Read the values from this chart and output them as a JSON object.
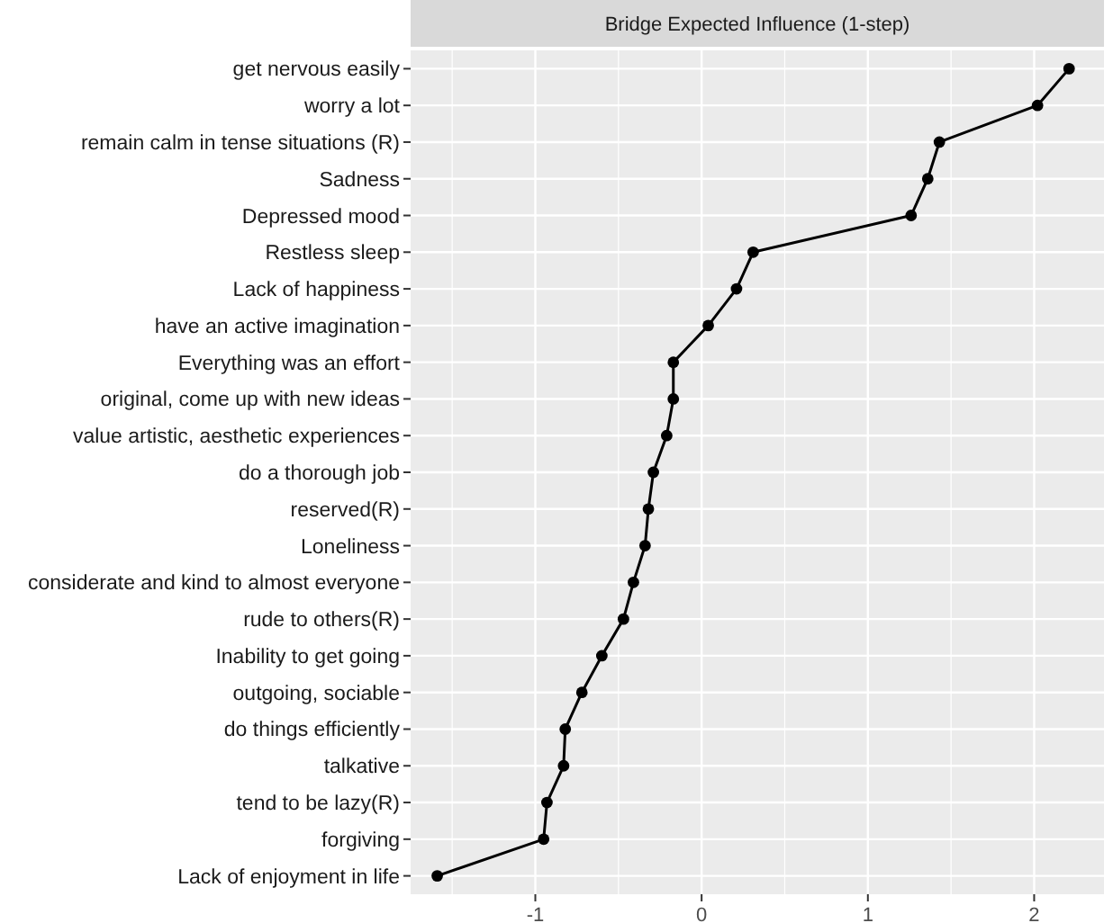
{
  "chart_data": {
    "type": "line",
    "orientation": "horizontal",
    "title": "Bridge Expected Influence (1-step)",
    "categories": [
      "get nervous easily",
      "worry a lot",
      "remain calm in tense situations (R)",
      "Sadness",
      "Depressed mood",
      "Restless sleep",
      "Lack of happiness",
      "have an active imagination",
      "Everything was an effort",
      "original, come up with new ideas",
      "value artistic, aesthetic experiences",
      "do a thorough job",
      "reserved(R)",
      "Loneliness",
      "considerate and kind to almost everyone",
      "rude to others(R)",
      "Inability to get going",
      "outgoing, sociable",
      "do things efficiently",
      "talkative",
      "tend to be lazy(R)",
      "forgiving",
      "Lack of enjoyment in life"
    ],
    "series": [
      {
        "color": "#000000",
        "values": [
          2.21,
          2.02,
          1.43,
          1.36,
          1.26,
          0.31,
          0.21,
          0.04,
          -0.17,
          -0.17,
          -0.21,
          -0.29,
          -0.32,
          -0.34,
          -0.41,
          -0.47,
          -0.6,
          -0.72,
          -0.82,
          -0.83,
          -0.93,
          -0.95,
          -1.59
        ]
      }
    ],
    "xlim": [
      -1.75,
      2.42
    ],
    "xticks": [
      {
        "value": -1.5,
        "label": null
      },
      -1,
      {
        "value": -0.5,
        "label": null
      },
      0,
      {
        "value": 0.5,
        "label": null
      },
      1,
      {
        "value": 1.5,
        "label": null
      },
      2
    ],
    "grid": true,
    "marker": "circle",
    "line_style": "solid"
  }
}
